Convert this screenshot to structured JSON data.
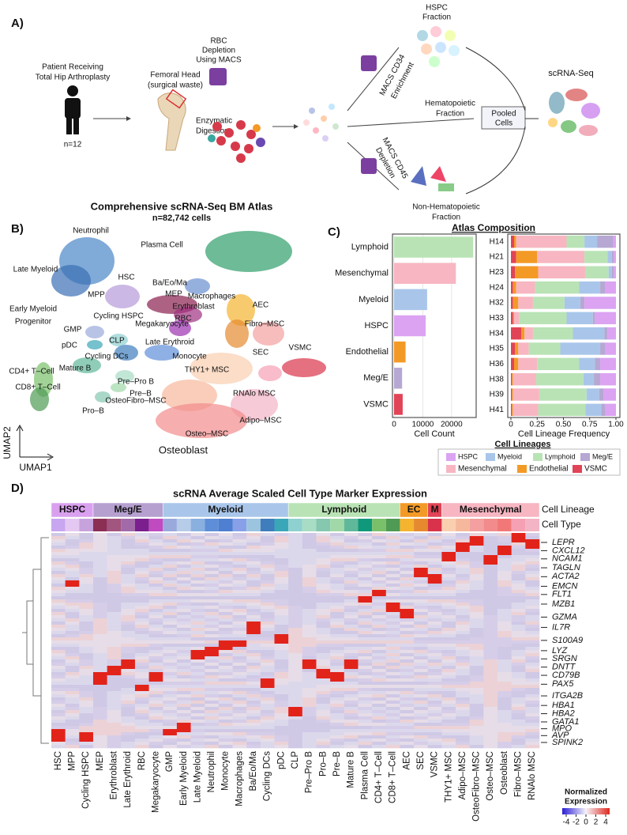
{
  "panel_a": {
    "label": "A)",
    "patient": [
      "Patient Receiving",
      "Total Hip Arthroplasty"
    ],
    "n": "n=12",
    "femoral": [
      "Femoral Head",
      "(surgical waste)"
    ],
    "digestion": [
      "Enzymatic",
      "Digestion"
    ],
    "rbc": [
      "RBC",
      "Depletion",
      "Using MACS"
    ],
    "hspc": [
      "HSPC",
      "Fraction"
    ],
    "cd34": [
      "MACS CD34",
      "Enrichment"
    ],
    "hemato": [
      "Hematopoietic",
      "Fraction"
    ],
    "pooled": [
      "Pooled",
      "Cells"
    ],
    "scrna": "scRNA-Seq",
    "cd45": [
      "MACS CD45",
      "Depletion"
    ],
    "nonhemato": [
      "Non-Hematopoietic",
      "Fraction"
    ]
  },
  "panel_b": {
    "label": "B)",
    "title": "Comprehensive scRNA-Seq BM Atlas",
    "subtitle": "n=82,742 cells",
    "xlabel": "UMAP1",
    "ylabel": "UMAP2",
    "clusters": [
      "Neutrophil",
      "Plasma Cell",
      "Late Myeloid",
      "HSC",
      "Ba/Eo/Ma",
      "MEP",
      "Macrophages",
      "MPP",
      "Erythroblast",
      "Cycling HSPC",
      "RBC",
      "Megakaryocyte",
      "AEC",
      "Early Myeloid",
      "Progenitor",
      "GMP",
      "Fibro–MSC",
      "pDC",
      "CLP",
      "Late Erythroid",
      "Cycling DCs",
      "Monocyte",
      "SEC",
      "VSMC",
      "CD4+ T–Cell",
      "Mature B",
      "THY1+ MSC",
      "Pre–Pro B",
      "Pre–B",
      "RNAlo MSC",
      "OsteoFibro–MSC",
      "CD8+ T–Cell",
      "Pro–B",
      "Adipo–MSC",
      "Osteo–MSC",
      "Osteoblast"
    ]
  },
  "panel_c": {
    "label": "C)",
    "title": "Atlas Composition"
  },
  "chart_data": [
    {
      "type": "bar",
      "orientation": "horizontal",
      "categories": [
        "Lymphoid",
        "Mesenchymal",
        "Myeloid",
        "HSPC",
        "Endothelial",
        "Meg/E",
        "VSMC"
      ],
      "values": [
        27500,
        21500,
        11500,
        11000,
        4000,
        2800,
        3000
      ],
      "colors": [
        "#b9e3b5",
        "#f7b6c2",
        "#a9c6ea",
        "#dba3f2",
        "#f39a26",
        "#b6a8d3",
        "#e14456"
      ],
      "xlim": [
        0,
        28000
      ],
      "xticks": [
        0,
        10000,
        20000
      ],
      "xlabel": "Cell Count",
      "grid": true
    },
    {
      "type": "stacked_bar",
      "orientation": "horizontal",
      "categories": [
        "H14",
        "H21",
        "H23",
        "H24",
        "H32",
        "H33",
        "H34",
        "H35",
        "H36",
        "H38",
        "H39",
        "H41"
      ],
      "series": [
        {
          "name": "VSMC",
          "color": "#e14456",
          "values": [
            0.03,
            0.05,
            0.04,
            0.02,
            0.02,
            0.02,
            0.1,
            0.04,
            0.03,
            0.01,
            0.01,
            0.01
          ]
        },
        {
          "name": "Endothelial",
          "color": "#f39a26",
          "values": [
            0.02,
            0.2,
            0.22,
            0.03,
            0.05,
            0.01,
            0.03,
            0.03,
            0.04,
            0.01,
            0.01,
            0.01
          ]
        },
        {
          "name": "Mesenchymal",
          "color": "#f7b6c2",
          "values": [
            0.48,
            0.45,
            0.45,
            0.18,
            0.14,
            0.05,
            0.08,
            0.1,
            0.18,
            0.22,
            0.25,
            0.24
          ]
        },
        {
          "name": "Lymphoid",
          "color": "#b9e3b5",
          "values": [
            0.17,
            0.22,
            0.22,
            0.42,
            0.3,
            0.45,
            0.38,
            0.3,
            0.4,
            0.45,
            0.45,
            0.45
          ]
        },
        {
          "name": "Myeloid",
          "color": "#a9c6ea",
          "values": [
            0.12,
            0.04,
            0.03,
            0.2,
            0.15,
            0.25,
            0.3,
            0.38,
            0.15,
            0.1,
            0.12,
            0.15
          ]
        },
        {
          "name": "Meg/E",
          "color": "#b6a8d3",
          "values": [
            0.15,
            0.02,
            0.02,
            0.05,
            0.04,
            0.02,
            0.03,
            0.05,
            0.05,
            0.06,
            0.04,
            0.04
          ]
        },
        {
          "name": "HSPC",
          "color": "#dba3f2",
          "values": [
            0.03,
            0.02,
            0.02,
            0.1,
            0.3,
            0.2,
            0.08,
            0.1,
            0.15,
            0.15,
            0.12,
            0.1
          ]
        }
      ],
      "xlim": [
        0,
        1
      ],
      "xticks": [
        0,
        0.25,
        {
          "value": 0.5,
          "label": "0.50"
        },
        0.75,
        {
          "value": 1,
          "label": "1.00"
        }
      ],
      "xlabel": "Cell Lineage Frequency",
      "legend_title": "Cell Lineages",
      "legend_order": [
        "HSPC",
        "Myeloid",
        "Lymphoid",
        "Meg/E",
        "Mesenchymal",
        "Endothelial",
        "VSMC"
      ]
    }
  ],
  "panel_d": {
    "label": "D)",
    "title": "scRNA Average Scaled Cell Type Marker Expression",
    "row_lineage": "Cell Lineage",
    "row_celltype": "Cell Type",
    "lineages": [
      {
        "name": "HSPC",
        "color": "#d9a0ef",
        "cell_types": [
          "HSC",
          "MPP",
          "Cycling HSPC"
        ],
        "colors": [
          "#c9a6f0",
          "#e4c8f2",
          "#c7a3dd"
        ]
      },
      {
        "name": "Meg/E",
        "color": "#b6a0d0",
        "cell_types": [
          "MEP",
          "Erythroblast",
          "Late Erythroid",
          "RBC",
          "Megakaryocyte"
        ],
        "colors": [
          "#8c2f55",
          "#a2557f",
          "#a26aa8",
          "#7b1f8f",
          "#c04bc0"
        ]
      },
      {
        "name": "Myeloid",
        "color": "#a9c6ea",
        "cell_types": [
          "GMP",
          "Early Myeloid",
          "Late Myeloid",
          "Neutrophil",
          "Monocyte",
          "Macrophages",
          "Ba/Eo/Ma",
          "Cycling DCs",
          "pDC"
        ],
        "colors": [
          "#9aa9dc",
          "#b6cce8",
          "#8ab0e0",
          "#5f8ed8",
          "#4e7fd0",
          "#87a0e8",
          "#9cc4de",
          "#3f7dbd",
          "#3aa7b8"
        ]
      },
      {
        "name": "Lymphoid",
        "color": "#b9e3b5",
        "cell_types": [
          "CLP",
          "Pre–Pro B",
          "Pro–B",
          "Pre–B",
          "Mature B",
          "Plasma Cell",
          "CD4+ T–Cell",
          "CD8+ T–Cell"
        ],
        "colors": [
          "#8fd0d0",
          "#a8dcc4",
          "#86c7b0",
          "#a0d8a8",
          "#5fb89a",
          "#10987a",
          "#7ac06a",
          "#4f9a54"
        ]
      },
      {
        "name": "EC",
        "color": "#f39a26",
        "cell_types": [
          "AEC",
          "SEC"
        ],
        "colors": [
          "#f5b430",
          "#e58a2e"
        ]
      },
      {
        "name": "M",
        "color": "#e14456",
        "cell_types": [
          "VSMC"
        ],
        "colors": [
          "#d8334a"
        ]
      },
      {
        "name": "Mesenchymal",
        "color": "#f7b6c2",
        "cell_types": [
          "THY1+ MSC",
          "Adipo–MSC",
          "OsteoFibro–MSC",
          "Osteo–MSC",
          "Osteoblast",
          "Fibro–MSC",
          "RNAlo MSC"
        ],
        "colors": [
          "#f9cfb0",
          "#f6b89c",
          "#f4a0a0",
          "#f28c8c",
          "#f27878",
          "#f6a0b4",
          "#f3b4c6"
        ]
      }
    ],
    "genes": [
      "LEPR",
      "CXCL12",
      "NCAM1",
      "TAGLN",
      "ACTA2",
      "EMCN",
      "FLT1",
      "MZB1",
      "GZMA",
      "IL7R",
      "S100A9",
      "LYZ",
      "SRGN",
      "DNTT",
      "CD79B",
      "PAX5",
      "ITGA2B",
      "HBA1",
      "HBA2",
      "GATA1",
      "MPO",
      "AVP",
      "SPINK2"
    ],
    "colorbar": {
      "title": [
        "Normalized",
        "Expression"
      ],
      "ticks": [
        -4,
        -2,
        0,
        2,
        4
      ]
    }
  }
}
